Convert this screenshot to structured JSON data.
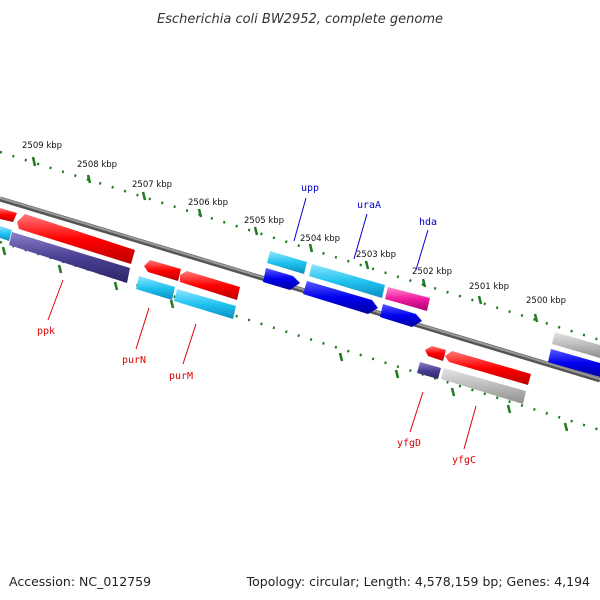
{
  "title": "Escherichia coli BW2952, complete genome",
  "footer": {
    "accession": "Accession: NC_012759",
    "topology": "Topology: circular; Length: 4,578,159 bp; Genes: 4,194"
  },
  "colors": {
    "backbone": "#7a7a7a",
    "ticks": "#1e7a1e",
    "label_blue": "#0000cc",
    "label_red": "#dd0000"
  },
  "kbp_labels": [
    "2509 kbp",
    "2508 kbp",
    "2507 kbp",
    "2506 kbp",
    "2505 kbp",
    "2504 kbp",
    "2503 kbp",
    "2502 kbp",
    "2501 kbp",
    "2500 kbp"
  ],
  "gene_labels": {
    "upp": "upp",
    "uraA": "uraA",
    "hda": "hda",
    "ppk": "ppk",
    "purN": "purN",
    "purM": "purM",
    "yfgD": "yfgD",
    "yfgC": "yfgC"
  }
}
